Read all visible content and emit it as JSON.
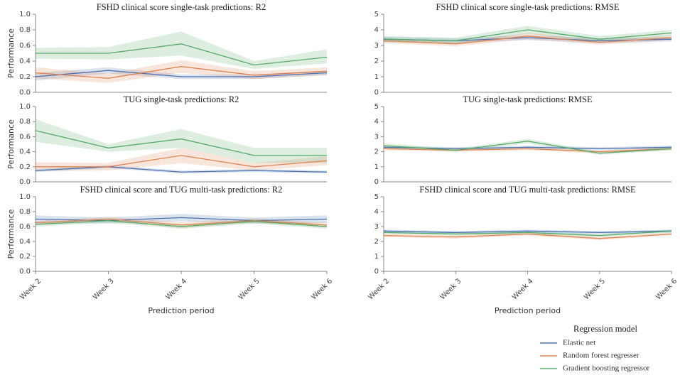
{
  "legend": {
    "title": "Regression model",
    "items": [
      {
        "name": "Elastic net",
        "color": "#4c72b0"
      },
      {
        "name": "Random forest regresser",
        "color": "#dd8452"
      },
      {
        "name": "Gradient boosting regressor",
        "color": "#55a868"
      }
    ]
  },
  "chart_data": [
    {
      "type": "line",
      "title": "FSHD clinical score single-task predictions: R2",
      "ylabel": "Performance",
      "ylim": [
        0,
        1
      ],
      "yticks": [
        {
          "value": 0,
          "label": "0.0"
        },
        0.2,
        0.4,
        0.6,
        0.8,
        {
          "value": 1,
          "label": "1.0"
        }
      ],
      "series": [
        {
          "values": [
            0.2,
            0.28,
            0.2,
            0.2,
            0.25
          ],
          "lower": [
            0.15,
            0.24,
            0.17,
            0.17,
            0.22
          ],
          "upper": [
            0.25,
            0.32,
            0.23,
            0.23,
            0.28
          ]
        },
        {
          "values": [
            0.25,
            0.18,
            0.33,
            0.22,
            0.27
          ],
          "lower": [
            0.18,
            0.12,
            0.25,
            0.17,
            0.22
          ],
          "upper": [
            0.32,
            0.24,
            0.41,
            0.27,
            0.32
          ]
        },
        {
          "values": [
            0.5,
            0.5,
            0.62,
            0.35,
            0.45
          ],
          "lower": [
            0.43,
            0.42,
            0.47,
            0.3,
            0.37
          ],
          "upper": [
            0.57,
            0.58,
            0.78,
            0.4,
            0.55
          ]
        }
      ]
    },
    {
      "type": "line",
      "title": "FSHD clinical score single-task predictions: RMSE",
      "ylim": [
        0,
        5
      ],
      "yticks": [
        0,
        1,
        2,
        3,
        4,
        5
      ],
      "series": [
        {
          "values": [
            3.4,
            3.3,
            3.5,
            3.3,
            3.4
          ],
          "lower": [
            3.25,
            3.15,
            3.35,
            3.15,
            3.25
          ],
          "upper": [
            3.55,
            3.45,
            3.65,
            3.45,
            3.55
          ]
        },
        {
          "values": [
            3.3,
            3.1,
            3.6,
            3.2,
            3.5
          ],
          "lower": [
            3.15,
            2.95,
            3.4,
            3.05,
            3.35
          ],
          "upper": [
            3.45,
            3.25,
            3.8,
            3.35,
            3.65
          ]
        },
        {
          "values": [
            3.4,
            3.3,
            4.0,
            3.4,
            3.8
          ],
          "lower": [
            3.2,
            3.1,
            3.75,
            3.2,
            3.6
          ],
          "upper": [
            3.6,
            3.5,
            4.25,
            3.6,
            4.0
          ]
        }
      ]
    },
    {
      "type": "line",
      "title": "TUG single-task predictions: R2",
      "ylabel": "Performance",
      "ylim": [
        0,
        1
      ],
      "yticks": [
        {
          "value": 0,
          "label": "0.0"
        },
        0.2,
        0.4,
        0.6,
        0.8,
        {
          "value": 1,
          "label": "1.0"
        }
      ],
      "series": [
        {
          "values": [
            0.15,
            0.2,
            0.13,
            0.15,
            0.13
          ],
          "lower": [
            0.13,
            0.18,
            0.11,
            0.13,
            0.11
          ],
          "upper": [
            0.17,
            0.22,
            0.15,
            0.17,
            0.15
          ]
        },
        {
          "values": [
            0.2,
            0.2,
            0.35,
            0.2,
            0.28
          ],
          "lower": [
            0.14,
            0.15,
            0.25,
            0.15,
            0.22
          ],
          "upper": [
            0.26,
            0.25,
            0.45,
            0.25,
            0.34
          ]
        },
        {
          "values": [
            0.68,
            0.45,
            0.57,
            0.35,
            0.35
          ],
          "lower": [
            0.53,
            0.4,
            0.45,
            0.25,
            0.25
          ],
          "upper": [
            0.83,
            0.5,
            0.7,
            0.45,
            0.45
          ]
        }
      ]
    },
    {
      "type": "line",
      "title": "TUG single-task predictions: RMSE",
      "ylim": [
        0,
        5
      ],
      "yticks": [
        0,
        1,
        2,
        3,
        4,
        5
      ],
      "series": [
        {
          "values": [
            2.3,
            2.2,
            2.3,
            2.2,
            2.3
          ],
          "lower": [
            2.2,
            2.1,
            2.2,
            2.1,
            2.2
          ],
          "upper": [
            2.4,
            2.3,
            2.4,
            2.3,
            2.4
          ]
        },
        {
          "values": [
            2.2,
            2.1,
            2.2,
            2.0,
            2.2
          ],
          "lower": [
            2.1,
            2.0,
            2.1,
            1.9,
            2.1
          ],
          "upper": [
            2.3,
            2.2,
            2.3,
            2.1,
            2.3
          ]
        },
        {
          "values": [
            2.4,
            2.1,
            2.7,
            1.9,
            2.2
          ],
          "lower": [
            2.25,
            2.0,
            2.55,
            1.8,
            2.1
          ],
          "upper": [
            2.55,
            2.2,
            2.85,
            2.0,
            2.3
          ]
        }
      ]
    },
    {
      "type": "line",
      "title": "FSHD clinical score and TUG multi-task predictions: R2",
      "ylabel": "Performance",
      "xlabel": "Prediction period",
      "categories": [
        "Week 2",
        "Week 3",
        "Week 4",
        "Week 5",
        "Week 6"
      ],
      "ylim": [
        0,
        1
      ],
      "yticks": [
        {
          "value": 0,
          "label": "0.0"
        },
        0.2,
        0.4,
        0.6,
        0.8,
        {
          "value": 1,
          "label": "1.0"
        }
      ],
      "series": [
        {
          "values": [
            0.7,
            0.68,
            0.72,
            0.68,
            0.7
          ],
          "lower": [
            0.65,
            0.64,
            0.67,
            0.64,
            0.65
          ],
          "upper": [
            0.75,
            0.72,
            0.77,
            0.72,
            0.75
          ]
        },
        {
          "values": [
            0.65,
            0.7,
            0.62,
            0.68,
            0.62
          ],
          "lower": [
            0.62,
            0.67,
            0.58,
            0.65,
            0.59
          ],
          "upper": [
            0.68,
            0.73,
            0.66,
            0.71,
            0.65
          ]
        },
        {
          "values": [
            0.63,
            0.68,
            0.6,
            0.67,
            0.6
          ],
          "lower": [
            0.6,
            0.65,
            0.57,
            0.64,
            0.57
          ],
          "upper": [
            0.66,
            0.71,
            0.63,
            0.7,
            0.63
          ]
        }
      ]
    },
    {
      "type": "line",
      "title": "FSHD clinical score and TUG multi-task predictions: RMSE",
      "xlabel": "Prediction period",
      "categories": [
        "Week 2",
        "Week 3",
        "Week 4",
        "Week 5",
        "Week 6"
      ],
      "ylim": [
        0,
        5
      ],
      "yticks": [
        0,
        1,
        2,
        3,
        4,
        5
      ],
      "series": [
        {
          "values": [
            2.7,
            2.6,
            2.7,
            2.6,
            2.7
          ],
          "lower": [
            2.6,
            2.5,
            2.6,
            2.5,
            2.6
          ],
          "upper": [
            2.8,
            2.7,
            2.8,
            2.7,
            2.8
          ]
        },
        {
          "values": [
            2.4,
            2.3,
            2.5,
            2.2,
            2.5
          ],
          "lower": [
            2.3,
            2.2,
            2.4,
            2.1,
            2.4
          ],
          "upper": [
            2.5,
            2.4,
            2.6,
            2.3,
            2.6
          ]
        },
        {
          "values": [
            2.6,
            2.5,
            2.6,
            2.4,
            2.7
          ],
          "lower": [
            2.5,
            2.4,
            2.5,
            2.3,
            2.6
          ],
          "upper": [
            2.7,
            2.6,
            2.7,
            2.5,
            2.8
          ]
        }
      ]
    }
  ]
}
